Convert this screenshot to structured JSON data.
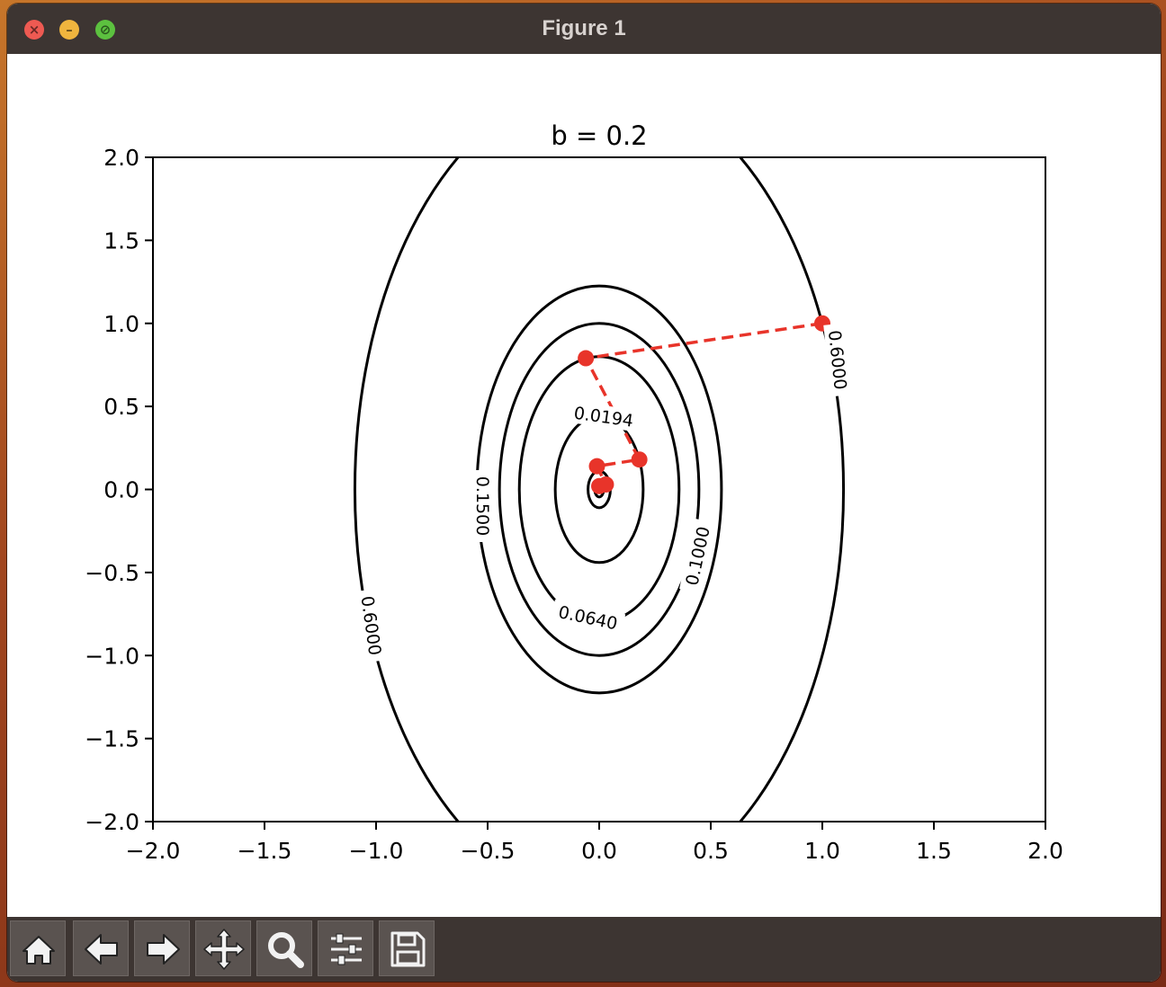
{
  "window": {
    "title": "Figure 1"
  },
  "window_controls": {
    "close_glyph": "×",
    "minimize_glyph": "–",
    "maximize_glyph": "⊘"
  },
  "toolbar": {
    "buttons": [
      {
        "name": "home-icon"
      },
      {
        "name": "back-arrow-icon"
      },
      {
        "name": "forward-arrow-icon"
      },
      {
        "name": "pan-move-icon"
      },
      {
        "name": "zoom-magnifier-icon"
      },
      {
        "name": "configure-subplots-icon"
      },
      {
        "name": "save-floppy-icon"
      }
    ]
  },
  "chart_data": {
    "type": "contour",
    "title": "b = 0.2",
    "xlabel": "",
    "ylabel": "",
    "xlim": [
      -2.0,
      2.0
    ],
    "ylim": [
      -2.0,
      2.0
    ],
    "xticks": [
      "−2.0",
      "−1.5",
      "−1.0",
      "−0.5",
      "0.0",
      "0.5",
      "1.0",
      "1.5",
      "2.0"
    ],
    "yticks": [
      "2.0",
      "1.5",
      "1.0",
      "0.5",
      "0.0",
      "−0.5",
      "−1.0",
      "−1.5",
      "−2.0"
    ],
    "contour_color": "#000000",
    "levels": [
      {
        "label": "0.6000",
        "rx": 1.095,
        "ry": 2.449,
        "labelled": true
      },
      {
        "label": "0.1500",
        "rx": 0.548,
        "ry": 1.225,
        "labelled": true
      },
      {
        "label": "0.1000",
        "rx": 0.447,
        "ry": 1.0,
        "labelled": true
      },
      {
        "label": "0.0640",
        "rx": 0.358,
        "ry": 0.8,
        "labelled": true
      },
      {
        "label": "0.0194",
        "rx": 0.197,
        "ry": 0.44,
        "labelled": true
      },
      {
        "label": "",
        "rx": 0.05,
        "ry": 0.11,
        "labelled": false
      },
      {
        "label": "",
        "rx": 0.02,
        "ry": 0.045,
        "labelled": false
      }
    ],
    "contour_labels": [
      {
        "text": "0.6000",
        "x": 1.07,
        "y": 0.78,
        "rotate": 84
      },
      {
        "text": "0.6000",
        "x": -1.02,
        "y": -0.82,
        "rotate": 82
      },
      {
        "text": "0.1500",
        "x": -0.52,
        "y": -0.1,
        "rotate": 90
      },
      {
        "text": "0.1000",
        "x": 0.44,
        "y": -0.4,
        "rotate": -78
      },
      {
        "text": "0.0640",
        "x": -0.05,
        "y": -0.77,
        "rotate": 12
      },
      {
        "text": "0.0194",
        "x": 0.02,
        "y": 0.44,
        "rotate": 8
      }
    ],
    "path": {
      "color": "#e8342a",
      "style": "dashed",
      "points": [
        {
          "x": 1.0,
          "y": 1.0
        },
        {
          "x": -0.06,
          "y": 0.79
        },
        {
          "x": 0.18,
          "y": 0.18
        },
        {
          "x": -0.01,
          "y": 0.14
        },
        {
          "x": 0.03,
          "y": 0.03
        },
        {
          "x": 0.0,
          "y": 0.02
        }
      ]
    },
    "grid": false
  }
}
